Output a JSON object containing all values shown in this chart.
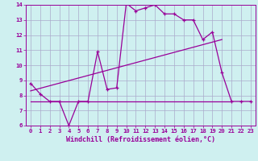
{
  "title": "",
  "xlabel": "Windchill (Refroidissement éolien,°C)",
  "background_color": "#cff0f0",
  "grid_color": "#aaaacc",
  "line_color": "#990099",
  "xlim": [
    -0.5,
    23.5
  ],
  "ylim": [
    6,
    14
  ],
  "xticks": [
    0,
    1,
    2,
    3,
    4,
    5,
    6,
    7,
    8,
    9,
    10,
    11,
    12,
    13,
    14,
    15,
    16,
    17,
    18,
    19,
    20,
    21,
    22,
    23
  ],
  "yticks": [
    6,
    7,
    8,
    9,
    10,
    11,
    12,
    13,
    14
  ],
  "curve_x": [
    0,
    1,
    2,
    3,
    4,
    5,
    6,
    7,
    8,
    9,
    10,
    11,
    12,
    13,
    14,
    15,
    16,
    17,
    18,
    19,
    20,
    21,
    22,
    23
  ],
  "curve_y": [
    8.8,
    8.1,
    7.6,
    7.6,
    6.0,
    7.6,
    7.6,
    10.9,
    8.4,
    8.5,
    14.1,
    13.6,
    13.8,
    14.0,
    13.4,
    13.4,
    13.0,
    13.0,
    11.7,
    12.2,
    9.5,
    7.6,
    7.6,
    7.6
  ],
  "line1_x": [
    0,
    20
  ],
  "line1_y": [
    8.3,
    11.7
  ],
  "line2_x": [
    0,
    21
  ],
  "line2_y": [
    7.6,
    7.6
  ],
  "xlabel_fontsize": 6.0,
  "tick_fontsize": 5.2
}
